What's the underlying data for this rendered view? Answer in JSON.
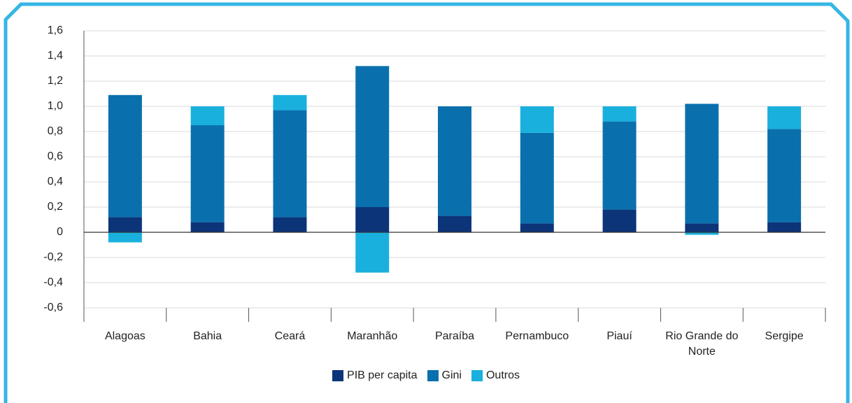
{
  "chart_data": {
    "type": "bar",
    "stacked": true,
    "categories": [
      "Alagoas",
      "Bahia",
      "Ceará",
      "Maranhão",
      "Paraíba",
      "Pernambuco",
      "Piauí",
      "Rio Grande do Norte",
      "Sergipe"
    ],
    "series": [
      {
        "name": "PIB per capita",
        "color": "#0c3479",
        "values": [
          0.12,
          0.08,
          0.12,
          0.2,
          0.13,
          0.07,
          0.18,
          0.07,
          0.08
        ]
      },
      {
        "name": "Gini",
        "color": "#0a70ad",
        "values": [
          0.97,
          0.77,
          0.85,
          1.12,
          0.87,
          0.72,
          0.7,
          0.95,
          0.74
        ]
      },
      {
        "name": "Outros",
        "color": "#19b0de",
        "values": [
          -0.08,
          0.15,
          0.12,
          -0.32,
          0,
          0.21,
          0.12,
          -0.02,
          0.18
        ]
      }
    ],
    "ylim": [
      -0.6,
      1.6
    ],
    "yticks": [
      {
        "value": -0.6,
        "label": "-0,6"
      },
      {
        "value": -0.4,
        "label": "-0,4"
      },
      {
        "value": -0.2,
        "label": "-0,2"
      },
      0,
      {
        "value": 0.2,
        "label": "0,2"
      },
      {
        "value": 0.4,
        "label": "0,4"
      },
      {
        "value": 0.6,
        "label": "0,6"
      },
      {
        "value": 0.8,
        "label": "0,8"
      },
      {
        "value": 1.0,
        "label": "1,0"
      },
      {
        "value": 1.2,
        "label": "1,2"
      },
      {
        "value": 1.4,
        "label": "1,4"
      },
      {
        "value": 1.6,
        "label": "1,6"
      }
    ],
    "grid": true,
    "legend": "bottom"
  }
}
